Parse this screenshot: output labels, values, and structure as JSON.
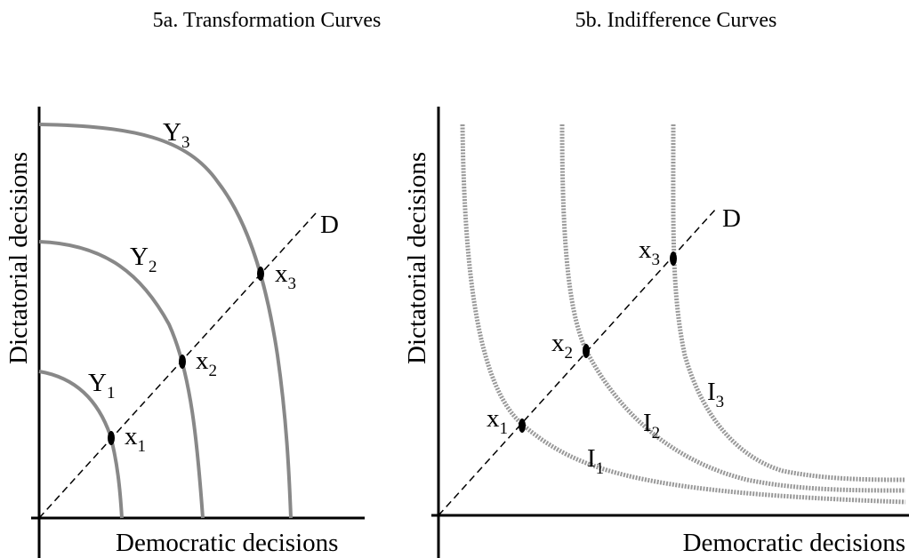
{
  "panels": [
    {
      "title": "5a. Transformation Curves",
      "x_axis_label": "Democratic decisions",
      "y_axis_label": "Dictatorial decisions",
      "line_label": "D",
      "curves": [
        {
          "name": "Y",
          "sub": "1"
        },
        {
          "name": "Y",
          "sub": "2"
        },
        {
          "name": "Y",
          "sub": "3"
        }
      ],
      "points": [
        {
          "name": "x",
          "sub": "1"
        },
        {
          "name": "x",
          "sub": "2"
        },
        {
          "name": "x",
          "sub": "3"
        }
      ]
    },
    {
      "title": "5b. Indifference Curves",
      "x_axis_label": "Democratic decisions",
      "y_axis_label": "Dictatorial decisions",
      "line_label": "D",
      "curves": [
        {
          "name": "I",
          "sub": "1"
        },
        {
          "name": "I",
          "sub": "2"
        },
        {
          "name": "I",
          "sub": "3"
        }
      ],
      "points": [
        {
          "name": "x",
          "sub": "1"
        },
        {
          "name": "x",
          "sub": "2"
        },
        {
          "name": "x",
          "sub": "3"
        }
      ]
    }
  ]
}
